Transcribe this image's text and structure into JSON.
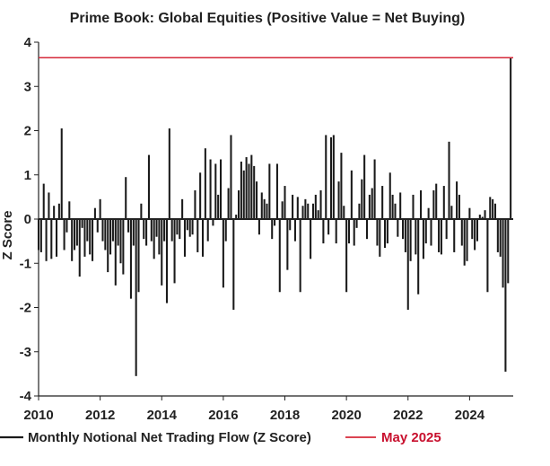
{
  "colors": {
    "bars": "#1a1a1a",
    "reference_line": "#d62a3a",
    "axis": "#222222",
    "legend_red_text": "#c8102e"
  },
  "chart_data": {
    "type": "bar",
    "title": "Prime Book: Global Equities (Positive Value = Net Buying)",
    "ylabel": "Z Score",
    "xlabel": "",
    "ylim": [
      -4,
      4
    ],
    "xlim": [
      "2010-01",
      "2025-06"
    ],
    "x_ticks": [
      "2010",
      "2012",
      "2014",
      "2016",
      "2018",
      "2020",
      "2022",
      "2024"
    ],
    "y_ticks": [
      "4",
      "3",
      "2",
      "1",
      "0",
      "-1",
      "-2",
      "-3",
      "-4"
    ],
    "grid": false,
    "legend_position": "bottom",
    "reference_line": {
      "name": "May 2025",
      "value": 3.65
    },
    "series": [
      {
        "name": "Monthly Notional Net Trading Flow (Z Score)",
        "x": [
          "2010-01",
          "2010-02",
          "2010-03",
          "2010-04",
          "2010-05",
          "2010-06",
          "2010-07",
          "2010-08",
          "2010-09",
          "2010-10",
          "2010-11",
          "2010-12",
          "2011-01",
          "2011-02",
          "2011-03",
          "2011-04",
          "2011-05",
          "2011-06",
          "2011-07",
          "2011-08",
          "2011-09",
          "2011-10",
          "2011-11",
          "2011-12",
          "2012-01",
          "2012-02",
          "2012-03",
          "2012-04",
          "2012-05",
          "2012-06",
          "2012-07",
          "2012-08",
          "2012-09",
          "2012-10",
          "2012-11",
          "2012-12",
          "2013-01",
          "2013-02",
          "2013-03",
          "2013-04",
          "2013-05",
          "2013-06",
          "2013-07",
          "2013-08",
          "2013-09",
          "2013-10",
          "2013-11",
          "2013-12",
          "2014-01",
          "2014-02",
          "2014-03",
          "2014-04",
          "2014-05",
          "2014-06",
          "2014-07",
          "2014-08",
          "2014-09",
          "2014-10",
          "2014-11",
          "2014-12",
          "2015-01",
          "2015-02",
          "2015-03",
          "2015-04",
          "2015-05",
          "2015-06",
          "2015-07",
          "2015-08",
          "2015-09",
          "2015-10",
          "2015-11",
          "2015-12",
          "2016-01",
          "2016-02",
          "2016-03",
          "2016-04",
          "2016-05",
          "2016-06",
          "2016-07",
          "2016-08",
          "2016-09",
          "2016-10",
          "2016-11",
          "2016-12",
          "2017-01",
          "2017-02",
          "2017-03",
          "2017-04",
          "2017-05",
          "2017-06",
          "2017-07",
          "2017-08",
          "2017-09",
          "2017-10",
          "2017-11",
          "2017-12",
          "2018-01",
          "2018-02",
          "2018-03",
          "2018-04",
          "2018-05",
          "2018-06",
          "2018-07",
          "2018-08",
          "2018-09",
          "2018-10",
          "2018-11",
          "2018-12",
          "2019-01",
          "2019-02",
          "2019-03",
          "2019-04",
          "2019-05",
          "2019-06",
          "2019-07",
          "2019-08",
          "2019-09",
          "2019-10",
          "2019-11",
          "2019-12",
          "2020-01",
          "2020-02",
          "2020-03",
          "2020-04",
          "2020-05",
          "2020-06",
          "2020-07",
          "2020-08",
          "2020-09",
          "2020-10",
          "2020-11",
          "2020-12",
          "2021-01",
          "2021-02",
          "2021-03",
          "2021-04",
          "2021-05",
          "2021-06",
          "2021-07",
          "2021-08",
          "2021-09",
          "2021-10",
          "2021-11",
          "2021-12",
          "2022-01",
          "2022-02",
          "2022-03",
          "2022-04",
          "2022-05",
          "2022-06",
          "2022-07",
          "2022-08",
          "2022-09",
          "2022-10",
          "2022-11",
          "2022-12",
          "2023-01",
          "2023-02",
          "2023-03",
          "2023-04",
          "2023-05",
          "2023-06",
          "2023-07",
          "2023-08",
          "2023-09",
          "2023-10",
          "2023-11",
          "2023-12",
          "2024-01",
          "2024-02",
          "2024-03",
          "2024-04",
          "2024-05",
          "2024-06",
          "2024-07",
          "2024-08",
          "2024-09",
          "2024-10",
          "2024-11",
          "2024-12",
          "2025-01",
          "2025-02",
          "2025-03",
          "2025-04",
          "2025-05"
        ],
        "values": [
          -0.7,
          -0.75,
          0.8,
          -0.95,
          0.6,
          -0.9,
          0.3,
          -0.85,
          0.35,
          2.05,
          -0.7,
          -0.3,
          0.4,
          -0.95,
          -0.7,
          -0.6,
          -1.3,
          -0.2,
          -0.85,
          -0.5,
          -0.8,
          -0.95,
          0.25,
          -0.3,
          0.45,
          -0.5,
          -0.7,
          -1.2,
          -0.8,
          -0.5,
          -1.5,
          -0.6,
          -1.0,
          -1.25,
          0.95,
          -0.3,
          -1.8,
          -0.6,
          -3.55,
          -1.65,
          0.35,
          -0.45,
          -0.6,
          1.45,
          -0.5,
          -0.9,
          -0.4,
          -0.8,
          -1.5,
          -0.5,
          -1.9,
          2.05,
          -0.5,
          -1.45,
          -0.35,
          -0.45,
          0.45,
          -0.85,
          -0.25,
          -0.4,
          -0.35,
          0.65,
          -0.75,
          1.05,
          -0.85,
          1.6,
          -0.5,
          1.35,
          -0.15,
          1.25,
          0.55,
          1.35,
          -1.55,
          -0.5,
          0.7,
          1.9,
          -2.05,
          0.1,
          0.65,
          1.3,
          1.1,
          1.4,
          1.25,
          1.45,
          1.2,
          0.85,
          -0.35,
          0.6,
          0.45,
          0.35,
          1.25,
          -0.45,
          -0.15,
          1.25,
          -1.65,
          0.4,
          0.75,
          -1.15,
          -0.25,
          0.55,
          -0.5,
          0.5,
          -1.65,
          0.3,
          0.45,
          0.35,
          -0.9,
          0.35,
          0.55,
          0.2,
          0.65,
          -0.55,
          1.9,
          -0.35,
          1.85,
          1.9,
          -0.55,
          0.85,
          1.5,
          0.3,
          -1.65,
          -0.55,
          1.1,
          -0.6,
          -0.2,
          0.35,
          0.9,
          1.45,
          -0.45,
          0.55,
          0.7,
          1.35,
          -0.6,
          -0.85,
          0.75,
          -0.65,
          -0.55,
          1.05,
          0.55,
          0.35,
          -0.4,
          0.6,
          -0.45,
          -0.75,
          -2.05,
          -0.95,
          0.55,
          -0.8,
          -1.7,
          0.65,
          -0.9,
          -0.55,
          0.25,
          -0.6,
          0.65,
          0.8,
          -0.75,
          -0.8,
          0.75,
          -0.45,
          1.75,
          0.3,
          -0.75,
          0.85,
          0.55,
          -0.6,
          -1.05,
          -0.95,
          0.25,
          -0.45,
          -0.7,
          -0.5,
          0.1,
          0.05,
          0.2,
          -1.65,
          0.5,
          0.45,
          0.35,
          -0.75,
          -0.85,
          -1.55,
          -3.45,
          -1.45,
          3.65
        ]
      }
    ],
    "legend": [
      {
        "label": "Monthly Notional Net Trading Flow (Z Score)",
        "kind": "bar"
      },
      {
        "label": "May 2025",
        "kind": "line"
      }
    ]
  }
}
